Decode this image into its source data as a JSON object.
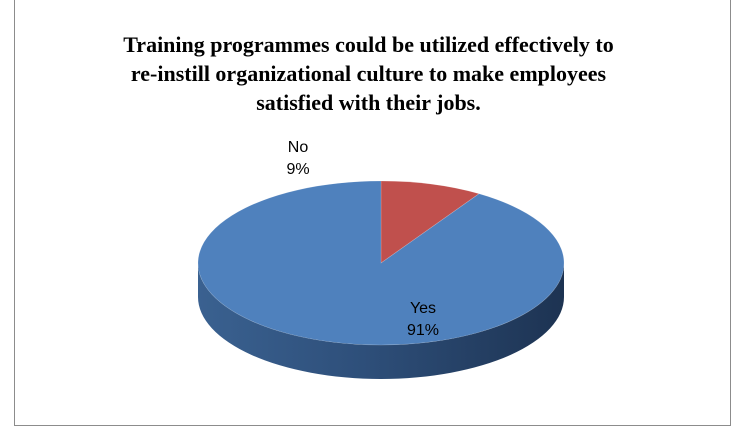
{
  "chart_data": {
    "type": "pie",
    "title_lines": [
      "Training programmes could be utilized effectively to",
      "re-instill organizational culture to make employees",
      "satisfied with their jobs."
    ],
    "categories": [
      "Yes",
      "No"
    ],
    "values": [
      91,
      9
    ],
    "value_labels": [
      "91%",
      "9%"
    ],
    "colors": [
      "#4f81bd",
      "#c0504d"
    ],
    "legend": "none"
  }
}
